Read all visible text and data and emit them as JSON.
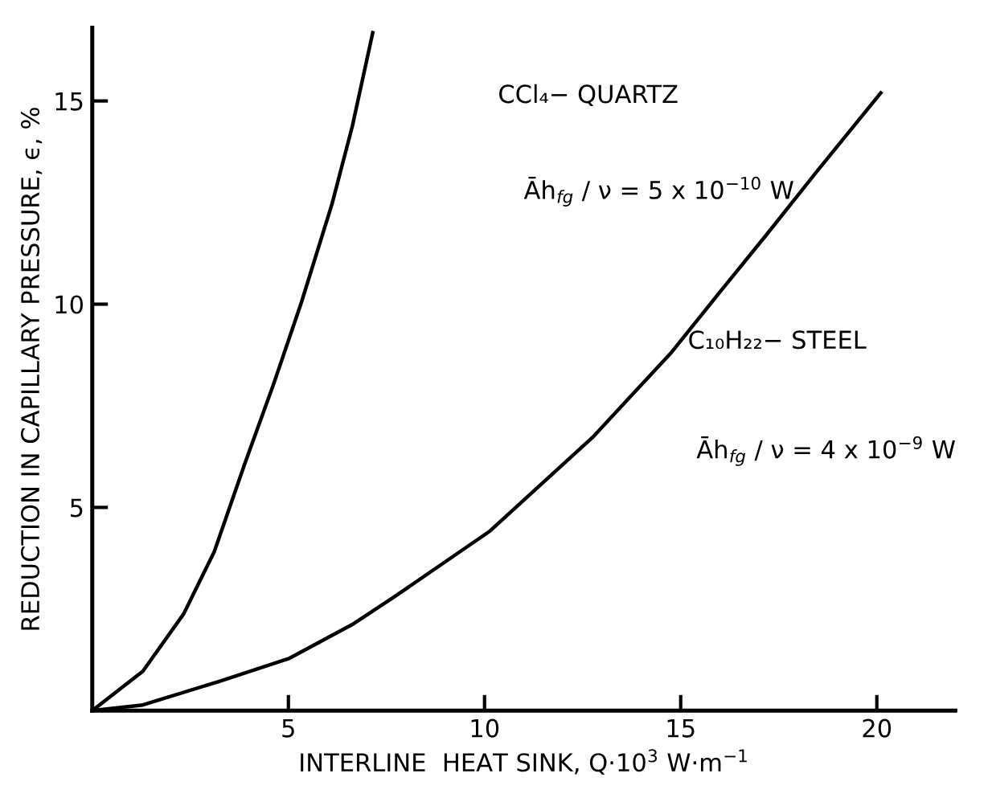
{
  "chart_data": {
    "type": "line",
    "xlabel": "INTERLINE  HEAT SINK, Q·10$^{3}$ W·m$^{−1}$",
    "ylabel": "REDUCTION IN CAPILLARY PRESSURE, ϵ, %",
    "xlim": [
      0,
      22
    ],
    "ylim": [
      0,
      16.8
    ],
    "xticks": [
      5,
      10,
      15,
      20
    ],
    "yticks": [
      5,
      10,
      15
    ],
    "grid": false,
    "legend": false,
    "marker": "none",
    "line_style": "solid",
    "series": [
      {
        "color": "#000000",
        "x": [
          0,
          1.29,
          2.33,
          3.11,
          3.89,
          4.61,
          5.33,
          6.11,
          6.63,
          7.15
        ],
        "values": [
          0,
          0.97,
          2.38,
          3.91,
          6.08,
          8.0,
          10.04,
          12.46,
          14.38,
          16.68
        ]
      },
      {
        "color": "#000000",
        "x": [
          0,
          1.29,
          3.24,
          5.03,
          6.63,
          7.7,
          10.14,
          12.75,
          14.77,
          16.0,
          17.18,
          18.5,
          20.1
        ],
        "values": [
          0,
          0.14,
          0.72,
          1.29,
          2.12,
          2.8,
          4.42,
          6.72,
          8.82,
          10.3,
          11.7,
          13.3,
          15.2
        ]
      }
    ],
    "annotations": [
      "CCl₄− QUARTZ",
      "Āh$_{fg}$ / ν = 5 x 10$^{−10}$ W",
      "C₁₀H₂₂− STEEL",
      "Āh$_{fg}$ / ν = 4 x 10$^{−9}$ W"
    ]
  }
}
